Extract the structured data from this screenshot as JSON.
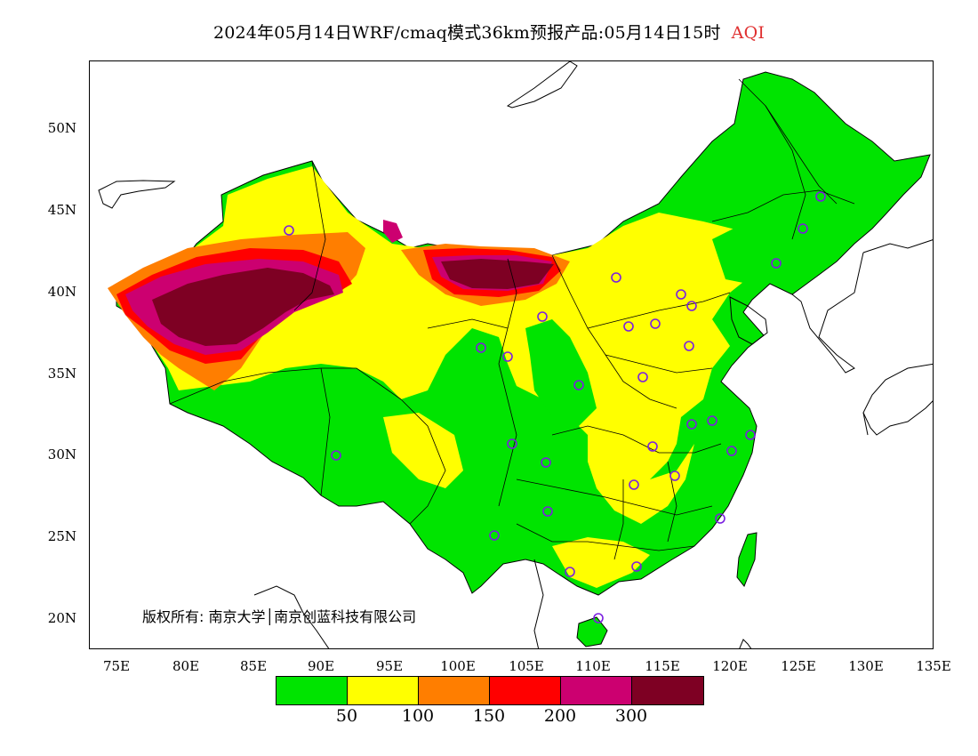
{
  "header": {
    "title": "2024年05月14日WRF/cmaq模式36km预报产品:05月14日15时",
    "title_suffix": "AQI",
    "title_suffix_color": "#e03030"
  },
  "map": {
    "lat_labels": [
      "50N",
      "45N",
      "40N",
      "35N",
      "30N",
      "25N",
      "20N"
    ],
    "lon_labels": [
      "75E",
      "80E",
      "85E",
      "90E",
      "95E",
      "100E",
      "105E",
      "110E",
      "115E",
      "120E",
      "125E",
      "130E",
      "135E"
    ],
    "copyright": "版权所有: 南京大学│南京创蓝科技有限公司",
    "station_marker_color": "#7b1fe0"
  },
  "legend": {
    "colors": [
      "#00e400",
      "#ffff00",
      "#ff7e00",
      "#ff0000",
      "#cc0070",
      "#7e0023"
    ],
    "labels": [
      "50",
      "100",
      "150",
      "200",
      "300"
    ]
  }
}
